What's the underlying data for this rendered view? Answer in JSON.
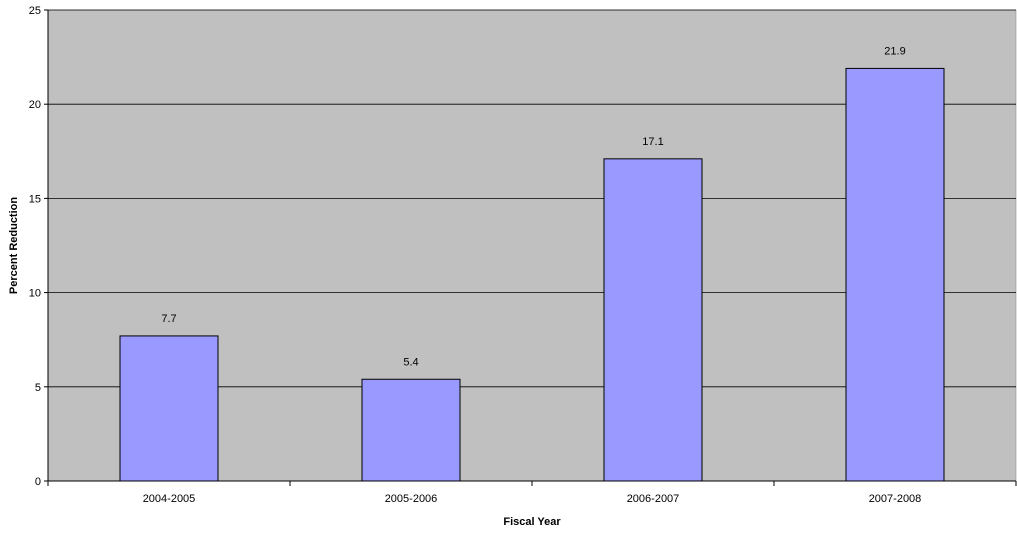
{
  "chart_data": {
    "type": "bar",
    "categories": [
      "2004-2005",
      "2005-2006",
      "2006-2007",
      "2007-2008"
    ],
    "values": [
      7.7,
      5.4,
      17.1,
      21.9
    ],
    "data_labels": [
      "7.7",
      "5.4",
      "17.1",
      "21.9"
    ],
    "title": "",
    "xlabel": "Fiscal Year",
    "ylabel": "Percent Reduction",
    "ylim": [
      0,
      25
    ],
    "yticks": [
      0,
      5,
      10,
      15,
      20,
      25
    ],
    "ytick_labels": [
      "0",
      "5",
      "10",
      "15",
      "20",
      "25"
    ],
    "grid": true,
    "legend": false,
    "colors": {
      "plot_background": "#c0c0c0",
      "bar_fill": "#9999ff",
      "bar_stroke": "#000000",
      "gridline": "#000000"
    }
  }
}
